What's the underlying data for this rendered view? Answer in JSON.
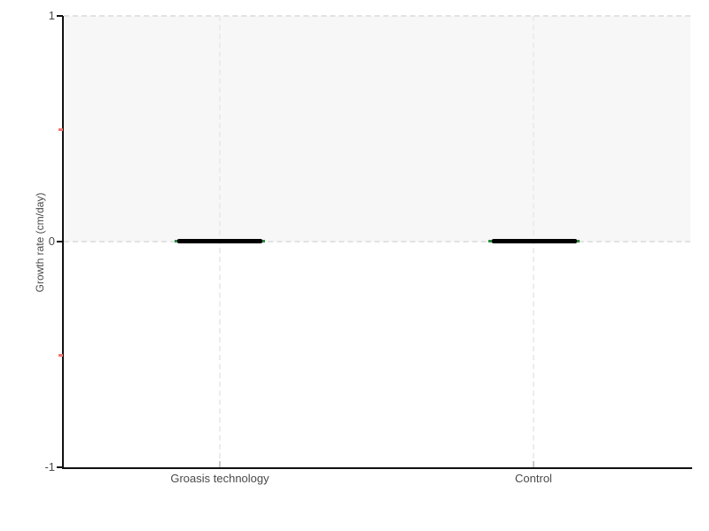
{
  "chart_data": {
    "type": "bar",
    "mark_style": "thick horizontal median line (collapsed box plot) with green whisker ends",
    "title": "",
    "xlabel": "",
    "ylabel": "Growth rate (cm/day)",
    "categories": [
      "Groasis technology",
      "Control"
    ],
    "values": [
      0,
      0
    ],
    "series": [
      {
        "name": "Growth rate",
        "values": [
          0,
          0
        ]
      }
    ],
    "ylim": [
      -1,
      1
    ],
    "yticks": [
      1,
      0,
      -1
    ],
    "ytick_labels": [
      "1",
      "0",
      "-1"
    ],
    "yticks_minor": [
      0.5,
      -0.5
    ],
    "grid": "dashed horizontal lines at y=0 and y=1; dashed vertical lines at each category",
    "shaded_band": {
      "from": 0,
      "to": 1,
      "color": "#f7f7f7"
    },
    "legend": "none",
    "colors": {
      "median_line": "#000000",
      "whisker": "#2e8b3d",
      "minor_tick": "#f8766d",
      "axis": "#111111",
      "grid_horizontal": "#e2e2e2",
      "grid_vertical": "#ececec",
      "text": "#4a4a4a",
      "background": "#ffffff"
    }
  }
}
